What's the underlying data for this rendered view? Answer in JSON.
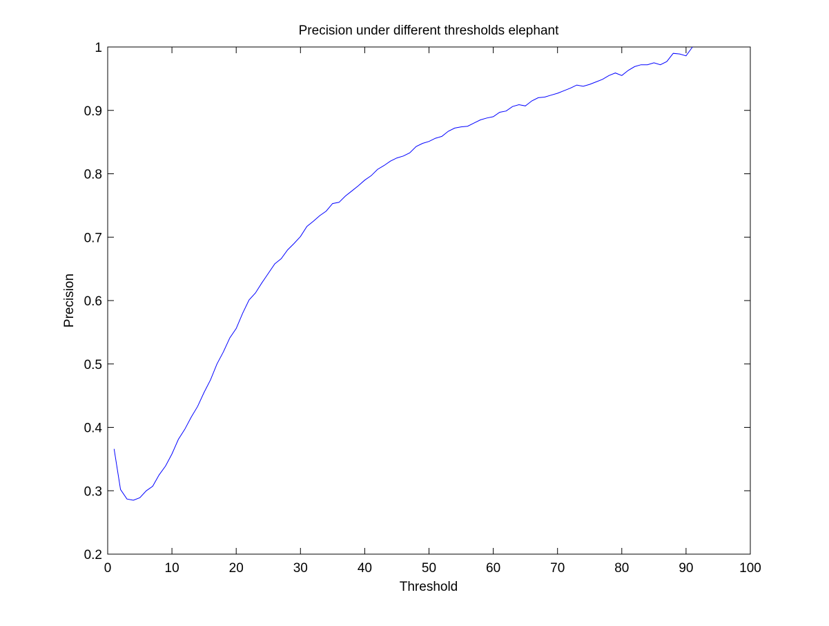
{
  "chart_data": {
    "type": "line",
    "title": "Precision under different thresholds elephant",
    "xlabel": "Threshold",
    "ylabel": "Precision",
    "xlim": [
      0,
      100
    ],
    "ylim": [
      0.2,
      1
    ],
    "xticks": [
      "0",
      "10",
      "20",
      "30",
      "40",
      "50",
      "60",
      "70",
      "80",
      "90",
      "100"
    ],
    "yticks": [
      "0.2",
      "0.3",
      "0.4",
      "0.5",
      "0.6",
      "0.7",
      "0.8",
      "0.9",
      "1"
    ],
    "grid": false,
    "legend": "none",
    "line_color": "#0000ff",
    "series": [
      {
        "x": [
          1,
          2,
          3,
          4,
          5,
          6,
          7,
          8,
          9,
          10,
          11,
          12,
          13,
          14,
          15,
          16,
          17,
          18,
          19,
          20,
          21,
          22,
          23,
          24,
          25,
          26,
          27,
          28,
          29,
          30,
          31,
          32,
          33,
          34,
          35,
          36,
          37,
          38,
          39,
          40,
          41,
          42,
          43,
          44,
          45,
          46,
          47,
          48,
          49,
          50,
          51,
          52,
          53,
          54,
          55,
          56,
          57,
          58,
          59,
          60,
          61,
          62,
          63,
          64,
          65,
          66,
          67,
          68,
          69,
          70,
          71,
          72,
          73,
          74,
          75,
          76,
          77,
          78,
          79,
          80,
          81,
          82,
          83,
          84,
          85,
          86,
          87,
          88,
          89,
          90,
          91
        ],
        "values": [
          0.366,
          0.302,
          0.287,
          0.285,
          0.289,
          0.3,
          0.307,
          0.325,
          0.339,
          0.358,
          0.381,
          0.397,
          0.416,
          0.433,
          0.455,
          0.475,
          0.5,
          0.519,
          0.541,
          0.556,
          0.58,
          0.601,
          0.612,
          0.628,
          0.643,
          0.658,
          0.666,
          0.68,
          0.69,
          0.701,
          0.717,
          0.725,
          0.734,
          0.741,
          0.753,
          0.755,
          0.765,
          0.773,
          0.781,
          0.79,
          0.797,
          0.807,
          0.813,
          0.82,
          0.825,
          0.828,
          0.833,
          0.843,
          0.848,
          0.851,
          0.856,
          0.859,
          0.867,
          0.872,
          0.874,
          0.875,
          0.88,
          0.885,
          0.888,
          0.89,
          0.897,
          0.899,
          0.906,
          0.909,
          0.907,
          0.915,
          0.92,
          0.921,
          0.924,
          0.927,
          0.931,
          0.935,
          0.94,
          0.938,
          0.941,
          0.945,
          0.949,
          0.955,
          0.959,
          0.955,
          0.963,
          0.969,
          0.972,
          0.972,
          0.975,
          0.972,
          0.977,
          0.99,
          0.989,
          0.986,
          1.0
        ]
      }
    ]
  }
}
